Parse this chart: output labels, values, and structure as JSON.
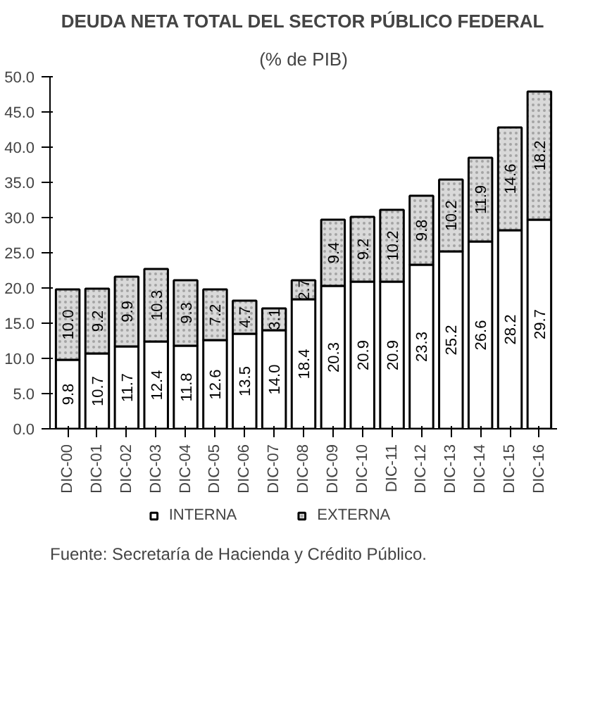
{
  "chart_data": {
    "type": "bar",
    "title": "DEUDA NETA TOTAL DEL SECTOR PÚBLICO FEDERAL",
    "subtitle": "(% de PIB)",
    "categories": [
      "DIC-00",
      "DIC-01",
      "DIC-02",
      "DIC-03",
      "DIC-04",
      "DIC-05",
      "DIC-06",
      "DIC-07",
      "DIC-08",
      "DIC-09",
      "DIC-10",
      "DIC-11",
      "DIC-12",
      "DIC-13",
      "DIC-14",
      "DIC-15",
      "DIC-16"
    ],
    "stacked": true,
    "series": [
      {
        "name": "INTERNA",
        "color": "#ffffff",
        "values": [
          9.8,
          10.7,
          11.7,
          12.4,
          11.8,
          12.6,
          13.5,
          14.0,
          18.4,
          20.3,
          20.9,
          20.9,
          23.3,
          25.2,
          26.6,
          28.2,
          29.7
        ],
        "value_labels": [
          "9.8",
          "10.7",
          "11.7",
          "12.4",
          "11.8",
          "12.6",
          "13.5",
          "14.0",
          "18.4",
          "20.3",
          "20.9",
          "20.9",
          "23.3",
          "25.2",
          "26.6",
          "28.2",
          "29.7"
        ]
      },
      {
        "name": "EXTERNA",
        "color": "#d9d9d9",
        "values": [
          10.0,
          9.2,
          9.9,
          10.3,
          9.3,
          7.2,
          4.7,
          3.1,
          2.7,
          9.4,
          9.2,
          10.2,
          9.8,
          10.2,
          11.9,
          14.6,
          18.2
        ],
        "value_labels": [
          "10.0",
          "9.2",
          "9.9",
          "10.3",
          "9.3",
          "7.2",
          "4.7",
          "3.1",
          "2.7",
          "9.4",
          "9.2",
          "10.2",
          "9.8",
          "10.2",
          "11.9",
          "14.6",
          "18.2"
        ]
      }
    ],
    "ylim": [
      0,
      50
    ],
    "yticks": [
      {
        "value": 0,
        "label": "0.0"
      },
      {
        "value": 5,
        "label": "5.0"
      },
      {
        "value": 10,
        "label": "10.0"
      },
      {
        "value": 15,
        "label": "15.0"
      },
      {
        "value": 20,
        "label": "20.0"
      },
      {
        "value": 25,
        "label": "25.0"
      },
      {
        "value": 30,
        "label": "30.0"
      },
      {
        "value": 35,
        "label": "35.0"
      },
      {
        "value": 40,
        "label": "40.0"
      },
      {
        "value": 45,
        "label": "45.0"
      },
      {
        "value": 50,
        "label": "50.0"
      }
    ],
    "grid": false,
    "legend": "bottom",
    "annotations": [
      "Fuente: Secretaría de Hacienda y Crédito Público."
    ]
  }
}
